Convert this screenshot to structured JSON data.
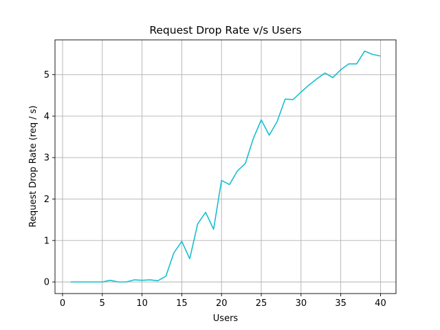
{
  "chart_data": {
    "type": "line",
    "title": "Request Drop Rate v/s Users",
    "xlabel": "Users",
    "ylabel": "Request Drop Rate (req / s)",
    "xlim": [
      -0.95,
      41.95
    ],
    "ylim": [
      -0.28,
      5.84
    ],
    "xticks": [
      0,
      5,
      10,
      15,
      20,
      25,
      30,
      35,
      40
    ],
    "yticks": [
      0,
      1,
      2,
      3,
      4,
      5
    ],
    "grid": true,
    "line_color": "#17becf",
    "series": [
      {
        "x": [
          1,
          2,
          3,
          4,
          5,
          6,
          7,
          8,
          9,
          10,
          11,
          12,
          13,
          14,
          15,
          16,
          17,
          18,
          19,
          20,
          21,
          22,
          23,
          24,
          25,
          26,
          27,
          28,
          29,
          30,
          31,
          32,
          33,
          34,
          35,
          36,
          37,
          38,
          39,
          40
        ],
        "values": [
          0,
          0,
          0,
          0,
          0,
          0.04,
          0,
          0,
          0.05,
          0.04,
          0.05,
          0.03,
          0.14,
          0.7,
          0.98,
          0.56,
          1.4,
          1.68,
          1.27,
          2.45,
          2.35,
          2.68,
          2.86,
          3.46,
          3.91,
          3.54,
          3.87,
          4.41,
          4.4,
          4.58,
          4.75,
          4.9,
          5.04,
          4.93,
          5.12,
          5.26,
          5.26,
          5.57,
          5.49,
          5.45
        ]
      }
    ]
  }
}
